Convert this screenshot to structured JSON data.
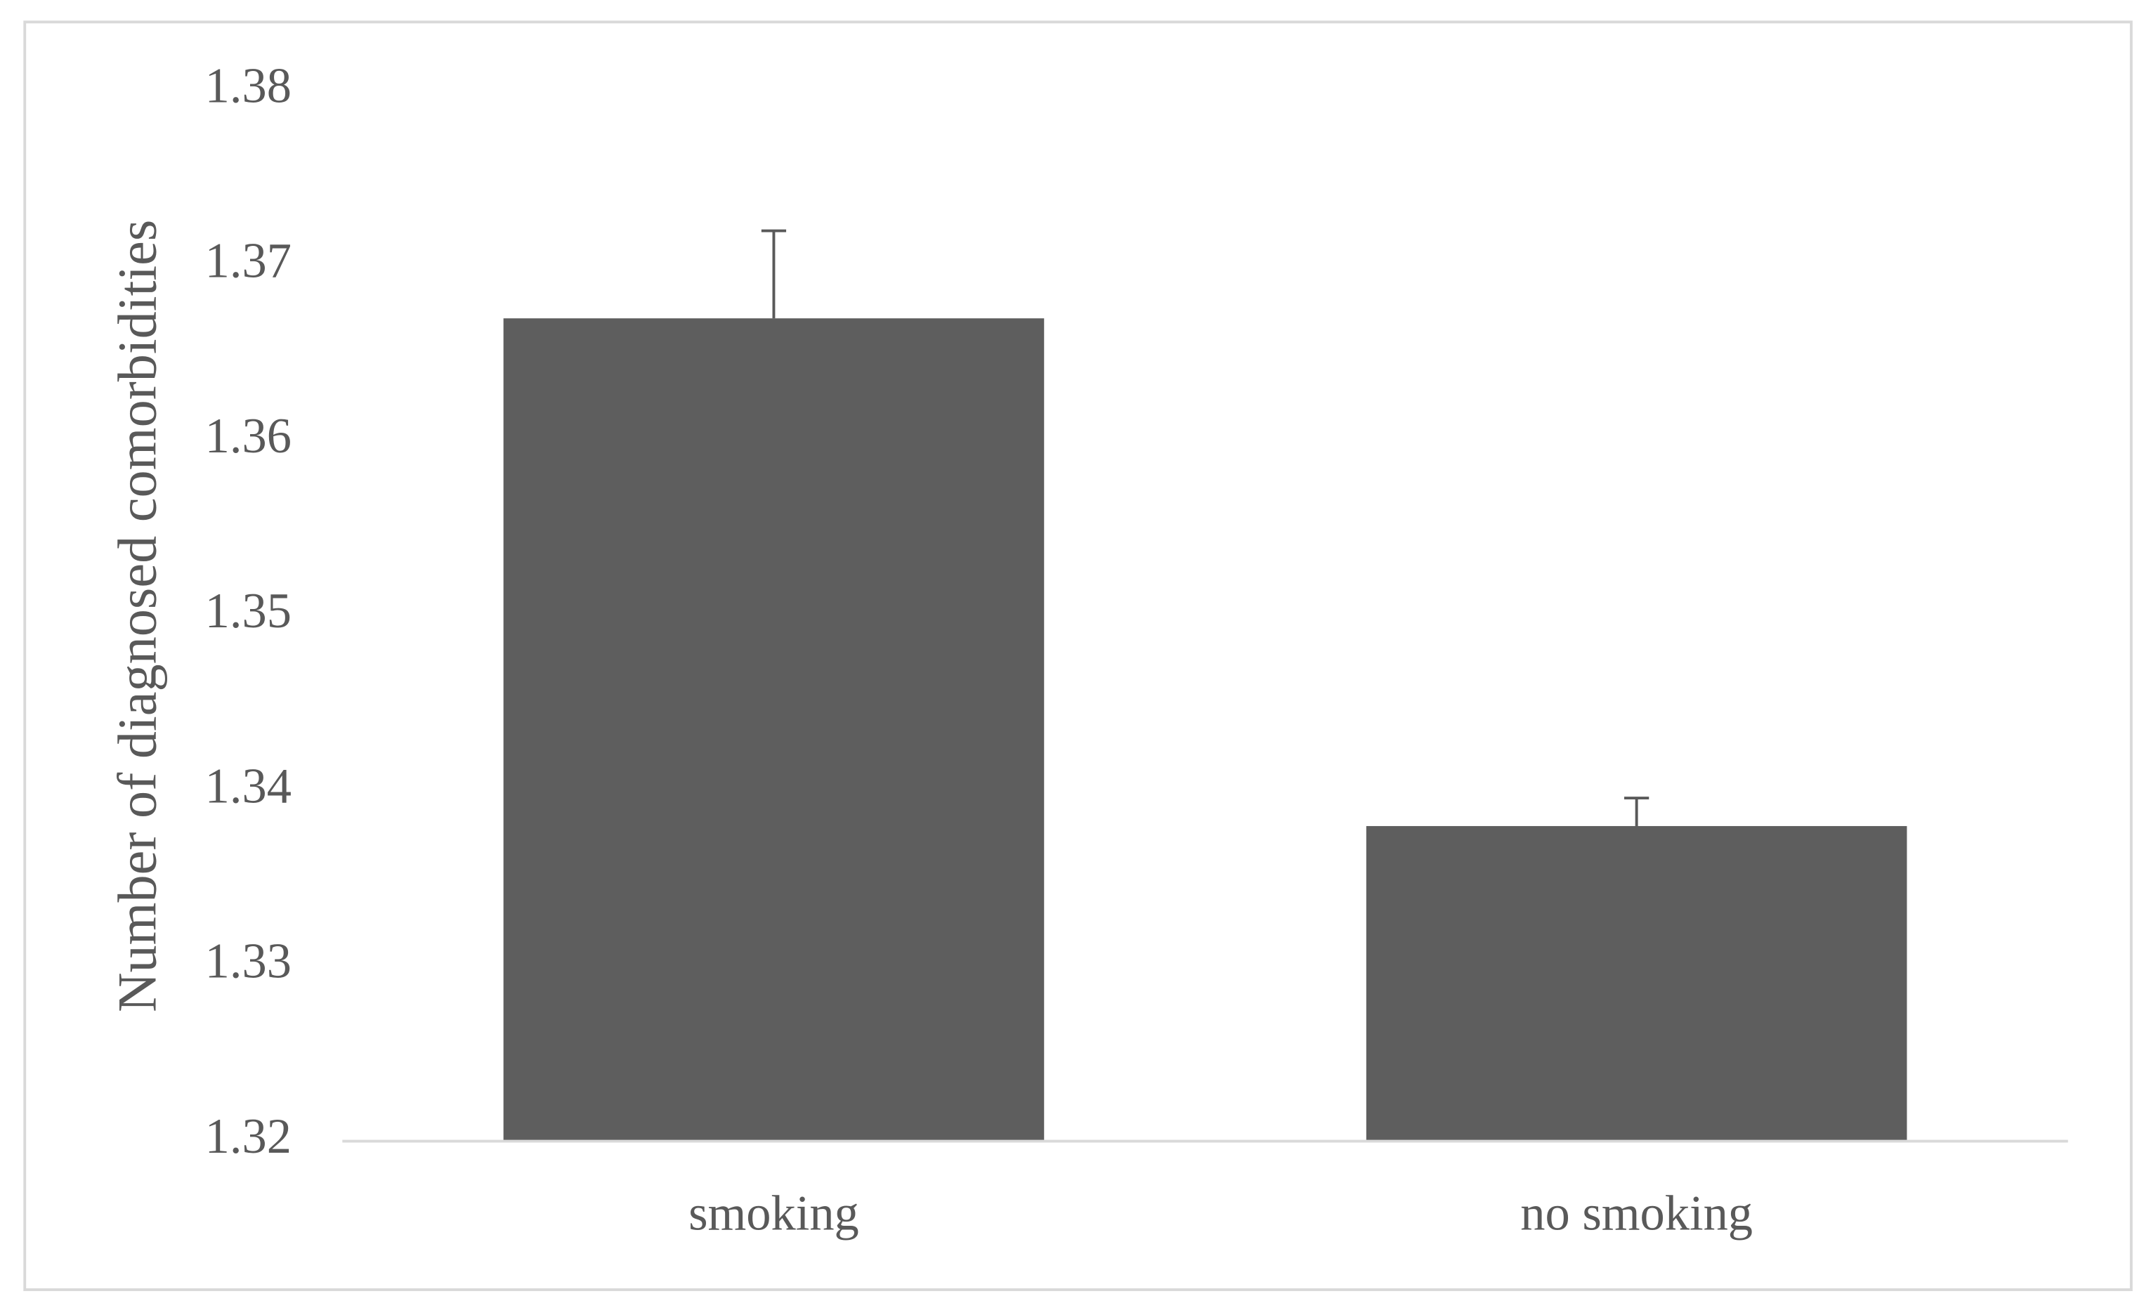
{
  "chart_data": {
    "type": "bar",
    "y_label": "Number of diagnosed comorbidities",
    "categories": [
      "smoking",
      "no smoking"
    ],
    "values": [
      1.367,
      1.338
    ],
    "errors": [
      0.005,
      0.0016
    ],
    "color": "#5e5e5e",
    "ylim": [
      1.32,
      1.38
    ],
    "yticks": [
      1.32,
      1.33,
      1.34,
      1.35,
      1.36,
      1.37,
      1.38
    ],
    "grid": false
  }
}
